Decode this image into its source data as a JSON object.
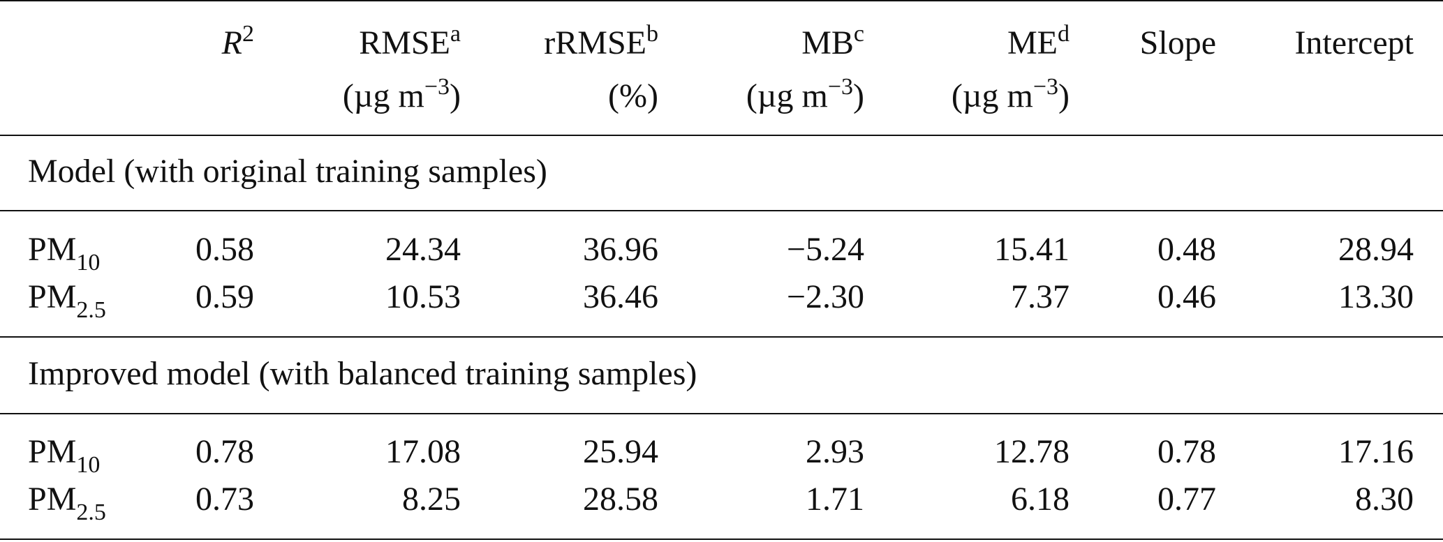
{
  "header": {
    "r2": {
      "base": "R",
      "sup": "2"
    },
    "rmse": {
      "base": "RMSE",
      "sup": "a",
      "unit_base": "(µg m",
      "unit_sup": "−3",
      "unit_close": ")"
    },
    "rrmse": {
      "base": "rRMSE",
      "sup": "b",
      "unit": "(%)"
    },
    "mb": {
      "base": "MB",
      "sup": "c",
      "unit_base": "(µg m",
      "unit_sup": "−3",
      "unit_close": ")"
    },
    "me": {
      "base": "ME",
      "sup": "d",
      "unit_base": "(µg m",
      "unit_sup": "−3",
      "unit_close": ")"
    },
    "slope": "Slope",
    "intercept": "Intercept"
  },
  "sections": [
    {
      "title": "Model (with original training samples)",
      "rows": [
        {
          "base": "PM",
          "sub": "10",
          "r2": "0.58",
          "rmse": "24.34",
          "rrmse": "36.96",
          "mb": "−5.24",
          "me": "15.41",
          "slope": "0.48",
          "intercept": "28.94"
        },
        {
          "base": "PM",
          "sub": "2.5",
          "r2": "0.59",
          "rmse": "10.53",
          "rrmse": "36.46",
          "mb": "−2.30",
          "me": "7.37",
          "slope": "0.46",
          "intercept": "13.30"
        }
      ]
    },
    {
      "title": "Improved model (with balanced training samples)",
      "rows": [
        {
          "base": "PM",
          "sub": "10",
          "r2": "0.78",
          "rmse": "17.08",
          "rrmse": "25.94",
          "mb": "2.93",
          "me": "12.78",
          "slope": "0.78",
          "intercept": "17.16"
        },
        {
          "base": "PM",
          "sub": "2.5",
          "r2": "0.73",
          "rmse": "8.25",
          "rrmse": "28.58",
          "mb": "1.71",
          "me": "6.18",
          "slope": "0.77",
          "intercept": "8.30"
        }
      ]
    }
  ]
}
